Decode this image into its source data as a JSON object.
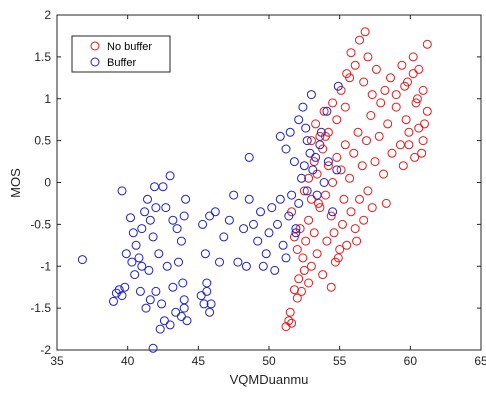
{
  "chart_data": {
    "type": "scatter",
    "xlabel": "VQMDuanmu",
    "ylabel": "MOS",
    "xlim": [
      35,
      65
    ],
    "ylim": [
      -2,
      2
    ],
    "xticks": [
      "35",
      "40",
      "45",
      "50",
      "55",
      "60",
      "65"
    ],
    "yticks": [
      "-2",
      "-1.5",
      "-1",
      "-0.5",
      "0",
      "0.5",
      "1",
      "1.5",
      "2"
    ],
    "grid": false,
    "legend_position": "top-left",
    "series": [
      {
        "name": "No buffer",
        "color": "#e8191e",
        "marker": "open-circle",
        "points": [
          [
            51.2,
            -1.72
          ],
          [
            51.4,
            -1.65
          ],
          [
            51.5,
            -1.55
          ],
          [
            51.6,
            -1.68
          ],
          [
            51.8,
            -1.28
          ],
          [
            52.0,
            -1.38
          ],
          [
            52.1,
            -1.15
          ],
          [
            52.3,
            -1.3
          ],
          [
            52.5,
            -1.05
          ],
          [
            52.8,
            -1.2
          ],
          [
            51.6,
            -0.35
          ],
          [
            51.8,
            -0.65
          ],
          [
            52.0,
            -0.8
          ],
          [
            52.2,
            -0.55
          ],
          [
            52.4,
            -0.9
          ],
          [
            52.6,
            -0.7
          ],
          [
            52.8,
            -0.45
          ],
          [
            53.0,
            -1.0
          ],
          [
            53.2,
            -0.6
          ],
          [
            53.4,
            -0.85
          ],
          [
            52.5,
            -0.1
          ],
          [
            52.8,
            0.05
          ],
          [
            53.0,
            -0.2
          ],
          [
            53.2,
            0.25
          ],
          [
            53.4,
            0.1
          ],
          [
            53.6,
            -0.3
          ],
          [
            53.8,
            0.4
          ],
          [
            54.0,
            -0.15
          ],
          [
            54.2,
            0.2
          ],
          [
            54.4,
            -0.4
          ],
          [
            53.0,
            0.5
          ],
          [
            53.3,
            0.7
          ],
          [
            53.6,
            0.55
          ],
          [
            53.9,
            0.85
          ],
          [
            54.2,
            0.6
          ],
          [
            54.5,
            0.95
          ],
          [
            54.8,
            0.75
          ],
          [
            55.1,
            1.1
          ],
          [
            55.4,
            0.9
          ],
          [
            55.7,
            1.25
          ],
          [
            54.6,
            -0.6
          ],
          [
            54.9,
            -0.9
          ],
          [
            55.2,
            -0.5
          ],
          [
            55.5,
            -0.75
          ],
          [
            55.8,
            -0.35
          ],
          [
            56.1,
            -0.55
          ],
          [
            56.4,
            -0.2
          ],
          [
            56.7,
            -0.45
          ],
          [
            57.0,
            -0.1
          ],
          [
            57.3,
            -0.3
          ],
          [
            54.5,
            0.0
          ],
          [
            54.8,
            0.3
          ],
          [
            55.1,
            0.15
          ],
          [
            55.4,
            0.45
          ],
          [
            55.7,
            0.05
          ],
          [
            56.0,
            0.35
          ],
          [
            56.3,
            0.6
          ],
          [
            56.6,
            0.2
          ],
          [
            56.9,
            0.5
          ],
          [
            57.2,
            0.8
          ],
          [
            55.5,
            1.3
          ],
          [
            55.8,
            1.55
          ],
          [
            56.1,
            1.4
          ],
          [
            56.4,
            1.7
          ],
          [
            56.7,
            1.2
          ],
          [
            57.0,
            1.5
          ],
          [
            57.3,
            1.05
          ],
          [
            57.6,
            1.35
          ],
          [
            57.9,
            0.95
          ],
          [
            56.8,
            1.8
          ],
          [
            57.5,
            0.25
          ],
          [
            57.8,
            0.55
          ],
          [
            58.1,
            0.1
          ],
          [
            58.4,
            0.7
          ],
          [
            58.7,
            0.35
          ],
          [
            59.0,
            0.9
          ],
          [
            59.3,
            0.45
          ],
          [
            59.6,
            1.15
          ],
          [
            59.9,
            0.6
          ],
          [
            60.2,
            1.3
          ],
          [
            58.2,
            1.1
          ],
          [
            58.6,
            1.25
          ],
          [
            59.0,
            1.05
          ],
          [
            59.4,
            1.4
          ],
          [
            59.8,
            1.2
          ],
          [
            60.2,
            1.5
          ],
          [
            60.6,
            1.35
          ],
          [
            60.9,
            1.1
          ],
          [
            61.2,
            1.65
          ],
          [
            60.5,
            1.0
          ],
          [
            59.5,
            0.2
          ],
          [
            59.9,
            0.45
          ],
          [
            60.3,
            0.3
          ],
          [
            60.6,
            0.65
          ],
          [
            60.9,
            0.5
          ],
          [
            61.2,
            0.85
          ],
          [
            60.4,
            0.95
          ],
          [
            61.0,
            0.7
          ],
          [
            59.7,
            0.75
          ],
          [
            60.8,
            0.35
          ],
          [
            53.8,
            -1.1
          ],
          [
            54.1,
            -0.7
          ],
          [
            54.4,
            -1.25
          ],
          [
            54.7,
            -0.95
          ],
          [
            55.0,
            -0.8
          ],
          [
            53.5,
            -0.25
          ],
          [
            54.0,
            0.55
          ],
          [
            55.3,
            -0.2
          ],
          [
            56.2,
            -0.7
          ],
          [
            58.3,
            -0.25
          ]
        ]
      },
      {
        "name": "Buffer",
        "color": "#1f1fc8",
        "marker": "open-circle",
        "points": [
          [
            36.8,
            -0.92
          ],
          [
            39.0,
            -1.42
          ],
          [
            39.2,
            -1.32
          ],
          [
            39.4,
            -1.28
          ],
          [
            39.6,
            -1.35
          ],
          [
            39.8,
            -1.25
          ],
          [
            39.6,
            -0.1
          ],
          [
            40.2,
            -0.42
          ],
          [
            40.4,
            -0.6
          ],
          [
            40.6,
            -0.75
          ],
          [
            40.8,
            -0.9
          ],
          [
            41.0,
            -0.55
          ],
          [
            41.2,
            -0.35
          ],
          [
            41.0,
            -1.0
          ],
          [
            41.4,
            -0.2
          ],
          [
            41.6,
            -0.45
          ],
          [
            41.8,
            -0.65
          ],
          [
            42.0,
            -0.3
          ],
          [
            42.2,
            -0.85
          ],
          [
            41.5,
            -1.05
          ],
          [
            40.5,
            -1.1
          ],
          [
            40.9,
            -1.3
          ],
          [
            41.3,
            -1.5
          ],
          [
            41.8,
            -1.98
          ],
          [
            42.3,
            -1.75
          ],
          [
            42.6,
            -1.65
          ],
          [
            43.0,
            -1.7
          ],
          [
            43.4,
            -1.55
          ],
          [
            43.8,
            -1.6
          ],
          [
            44.0,
            -1.5
          ],
          [
            42.5,
            -0.05
          ],
          [
            43.0,
            0.08
          ],
          [
            43.2,
            -0.45
          ],
          [
            43.5,
            -0.55
          ],
          [
            43.8,
            -0.7
          ],
          [
            44.0,
            -0.4
          ],
          [
            43.6,
            -0.95
          ],
          [
            43.9,
            -1.2
          ],
          [
            44.1,
            -0.2
          ],
          [
            42.8,
            -1.0
          ],
          [
            42.0,
            -1.3
          ],
          [
            42.4,
            -1.45
          ],
          [
            43.2,
            -1.25
          ],
          [
            44.2,
            -1.65
          ],
          [
            44.0,
            -1.4
          ],
          [
            42.7,
            -0.3
          ],
          [
            41.9,
            -0.05
          ],
          [
            40.3,
            -0.95
          ],
          [
            39.9,
            -0.85
          ],
          [
            41.6,
            -1.4
          ],
          [
            45.2,
            -1.35
          ],
          [
            45.4,
            -1.45
          ],
          [
            45.6,
            -1.3
          ],
          [
            45.8,
            -1.55
          ],
          [
            45.9,
            -1.45
          ],
          [
            45.6,
            -1.2
          ],
          [
            45.3,
            -0.5
          ],
          [
            45.5,
            -0.85
          ],
          [
            45.8,
            -0.4
          ],
          [
            46.2,
            -0.35
          ],
          [
            46.5,
            -0.95
          ],
          [
            46.8,
            -0.65
          ],
          [
            47.2,
            -0.45
          ],
          [
            47.5,
            -0.15
          ],
          [
            47.8,
            -0.95
          ],
          [
            48.2,
            -0.55
          ],
          [
            48.4,
            -1.0
          ],
          [
            48.6,
            -0.2
          ],
          [
            48.6,
            0.3
          ],
          [
            48.9,
            -0.5
          ],
          [
            49.2,
            -0.7
          ],
          [
            49.4,
            -0.35
          ],
          [
            49.6,
            -1.0
          ],
          [
            49.8,
            -0.85
          ],
          [
            50.0,
            -0.6
          ],
          [
            50.2,
            -0.3
          ],
          [
            50.4,
            -1.05
          ],
          [
            50.6,
            -0.5
          ],
          [
            50.8,
            -0.2
          ],
          [
            51.0,
            -0.75
          ],
          [
            51.2,
            -0.9
          ],
          [
            51.4,
            -0.4
          ],
          [
            51.6,
            -0.15
          ],
          [
            51.9,
            -0.55
          ],
          [
            52.1,
            -0.25
          ],
          [
            52.3,
            0.05
          ],
          [
            52.5,
            0.2
          ],
          [
            52.7,
            -0.1
          ],
          [
            52.9,
            0.35
          ],
          [
            53.1,
            0.15
          ],
          [
            50.8,
            0.55
          ],
          [
            51.2,
            0.4
          ],
          [
            51.5,
            0.6
          ],
          [
            51.8,
            0.25
          ],
          [
            52.1,
            0.75
          ],
          [
            52.4,
            0.9
          ],
          [
            52.7,
            0.5
          ],
          [
            53.0,
            1.05
          ],
          [
            53.3,
            0.3
          ],
          [
            53.6,
            0.45
          ],
          [
            53.9,
            0.0
          ],
          [
            54.2,
            0.25
          ],
          [
            54.5,
            -0.35
          ],
          [
            54.8,
            0.15
          ],
          [
            53.4,
            -0.15
          ],
          [
            52.6,
            0.65
          ],
          [
            51.9,
            -0.6
          ],
          [
            53.7,
            0.6
          ],
          [
            54.1,
            0.85
          ],
          [
            54.9,
            1.15
          ]
        ]
      }
    ]
  }
}
